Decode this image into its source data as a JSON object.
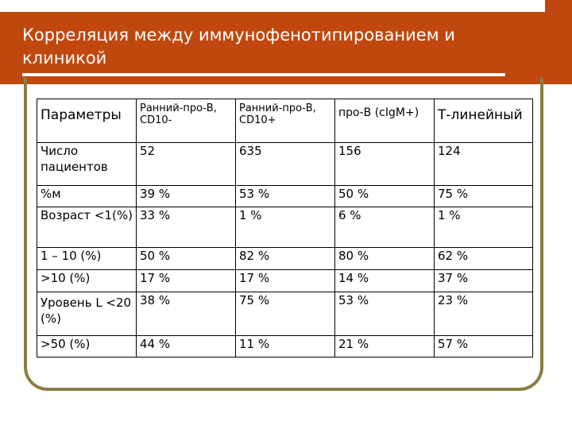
{
  "slide": {
    "title_line1": "Корреляция между иммунофенотипированием и",
    "title_line2": "клиникой"
  },
  "colors": {
    "title_bg": "#c0480f",
    "frame": "#8a7d42"
  },
  "table": {
    "headers": [
      "Параметры",
      "Ранний-про-В, CD10-",
      "Ранний-про-В, CD10+",
      "про-В (cIgM+)",
      "Т-линейный"
    ],
    "rows": [
      [
        "Число пациентов",
        "52",
        "635",
        "156",
        "124"
      ],
      [
        "%м",
        "39 %",
        "53 %",
        "50 %",
        "75 %"
      ],
      [
        "Возраст <1(%)",
        "33 %",
        "1 %",
        "6 %",
        "1 %"
      ],
      [
        "1 – 10 (%)",
        "50 %",
        "82 %",
        "80 %",
        "62 %"
      ],
      [
        ">10 (%)",
        "17 %",
        "17 %",
        "14 %",
        "37 %"
      ],
      [
        "Уровень L <20 (%)",
        "38 %",
        "75 %",
        "53 %",
        "23 %"
      ],
      [
        ">50 (%)",
        "44 %",
        "11 %",
        "21 %",
        "57 %"
      ]
    ]
  }
}
